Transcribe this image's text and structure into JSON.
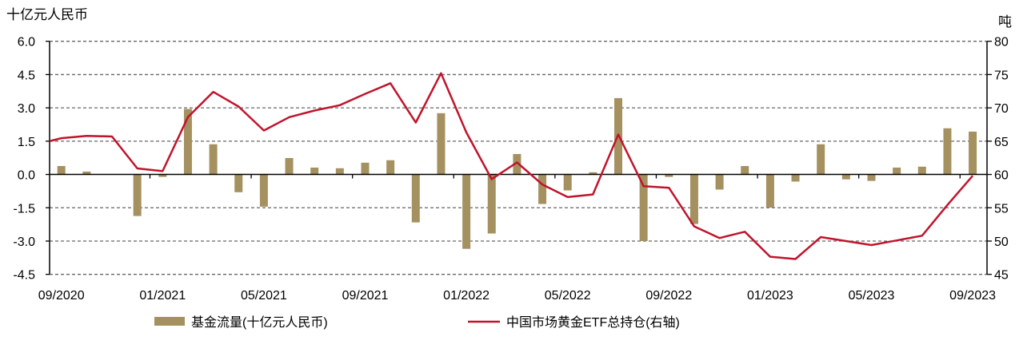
{
  "chart_data": {
    "type": "bar+line",
    "left_axis_label": "十亿元人民币",
    "right_axis_label": "吨",
    "ylim_left": [
      -4.5,
      6.0
    ],
    "yticks_left": [
      "6.0",
      "4.5",
      "3.0",
      "1.5",
      "0.0",
      "-1.5",
      "-3.0",
      "-4.5"
    ],
    "ylim_right": [
      45,
      80
    ],
    "yticks_right": [
      "80",
      "75",
      "70",
      "65",
      "60",
      "55",
      "50",
      "45"
    ],
    "grid": "horizontal dashed",
    "legend_position": "bottom",
    "x_tick_labels": [
      "09/2020",
      "01/2021",
      "05/2021",
      "09/2021",
      "01/2022",
      "05/2022",
      "09/2022",
      "01/2023",
      "05/2023",
      "09/2023"
    ],
    "categories": [
      "08/2020",
      "09/2020",
      "10/2020",
      "11/2020",
      "12/2020",
      "01/2021",
      "02/2021",
      "03/2021",
      "04/2021",
      "05/2021",
      "06/2021",
      "07/2021",
      "08/2021",
      "09/2021",
      "10/2021",
      "11/2021",
      "12/2021",
      "01/2022",
      "02/2022",
      "03/2022",
      "04/2022",
      "05/2022",
      "06/2022",
      "07/2022",
      "08/2022",
      "09/2022",
      "10/2022",
      "11/2022",
      "12/2022",
      "01/2023",
      "02/2023",
      "03/2023",
      "04/2023",
      "05/2023",
      "06/2023",
      "07/2023",
      "08/2023",
      "09/2023"
    ],
    "series": [
      {
        "name": "基金流量(十亿元人民币)",
        "type": "bar",
        "axis": "left",
        "color": "#a59060",
        "values": [
          null,
          0.38,
          0.13,
          0,
          -1.87,
          -0.11,
          2.95,
          1.36,
          -0.8,
          -1.45,
          0.74,
          0.31,
          0.28,
          0.53,
          0.64,
          -2.16,
          2.76,
          -3.35,
          -2.66,
          0.92,
          -1.33,
          -0.72,
          0.1,
          3.44,
          -3.0,
          -0.11,
          -2.23,
          -0.68,
          0.38,
          -1.49,
          -0.32,
          1.36,
          -0.22,
          -0.29,
          0.31,
          0.35,
          2.08,
          1.93
        ]
      },
      {
        "name": "中国市场黄金ETF总持仓(右轴)",
        "type": "line",
        "axis": "right",
        "color": "#c0142c",
        "values": [
          64.5,
          65.45,
          65.8,
          65.7,
          60.9,
          60.5,
          68.6,
          72.4,
          70.2,
          66.6,
          68.6,
          69.6,
          70.4,
          72.1,
          73.7,
          67.8,
          75.2,
          66.3,
          59.3,
          61.8,
          58.5,
          56.6,
          57.0,
          66.0,
          58.25,
          58.0,
          52.2,
          50.45,
          51.4,
          47.65,
          47.3,
          50.6,
          50.0,
          49.4,
          50.1,
          50.8,
          55.4,
          59.8
        ]
      }
    ]
  }
}
